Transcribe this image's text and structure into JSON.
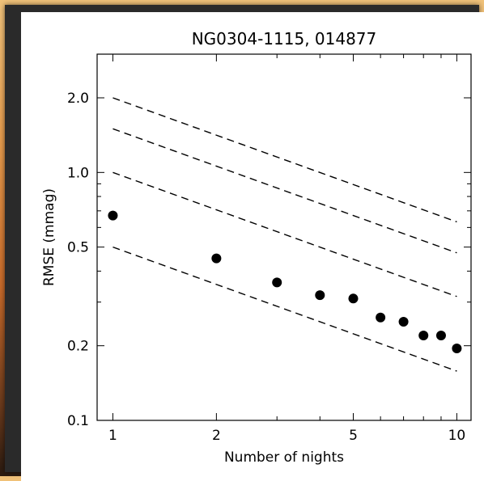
{
  "chart_data": {
    "type": "scatter",
    "title": "NG0304-1115, 014877",
    "xlabel": "Number of nights",
    "ylabel": "RMSE (mmag)",
    "xscale": "log",
    "yscale": "log",
    "xlim": [
      0.9,
      11
    ],
    "ylim": [
      0.1,
      3.0
    ],
    "xticks": [
      {
        "value": 1,
        "label": "1"
      },
      {
        "value": 2,
        "label": "2"
      },
      {
        "value": 5,
        "label": "5"
      },
      {
        "value": 10,
        "label": "10"
      }
    ],
    "yticks": [
      {
        "value": 0.1,
        "label": "0.1"
      },
      {
        "value": 0.2,
        "label": "0.2"
      },
      {
        "value": 0.5,
        "label": "0.5"
      },
      {
        "value": 1.0,
        "label": "1.0"
      },
      {
        "value": 2.0,
        "label": "2.0"
      }
    ],
    "points": {
      "x": [
        1,
        2,
        3,
        4,
        5,
        6,
        7,
        8,
        9,
        10
      ],
      "y": [
        0.67,
        0.45,
        0.36,
        0.32,
        0.31,
        0.26,
        0.25,
        0.22,
        0.22,
        0.195
      ]
    },
    "reference_lines": [
      {
        "x": [
          1,
          10
        ],
        "y": [
          2.0,
          0.632
        ]
      },
      {
        "x": [
          1,
          10
        ],
        "y": [
          1.5,
          0.474
        ]
      },
      {
        "x": [
          1,
          10
        ],
        "y": [
          1.0,
          0.316
        ]
      },
      {
        "x": [
          1,
          10
        ],
        "y": [
          0.5,
          0.158
        ]
      }
    ],
    "grid": false,
    "colors": {
      "points": "#000000",
      "lines": "#000000"
    }
  }
}
